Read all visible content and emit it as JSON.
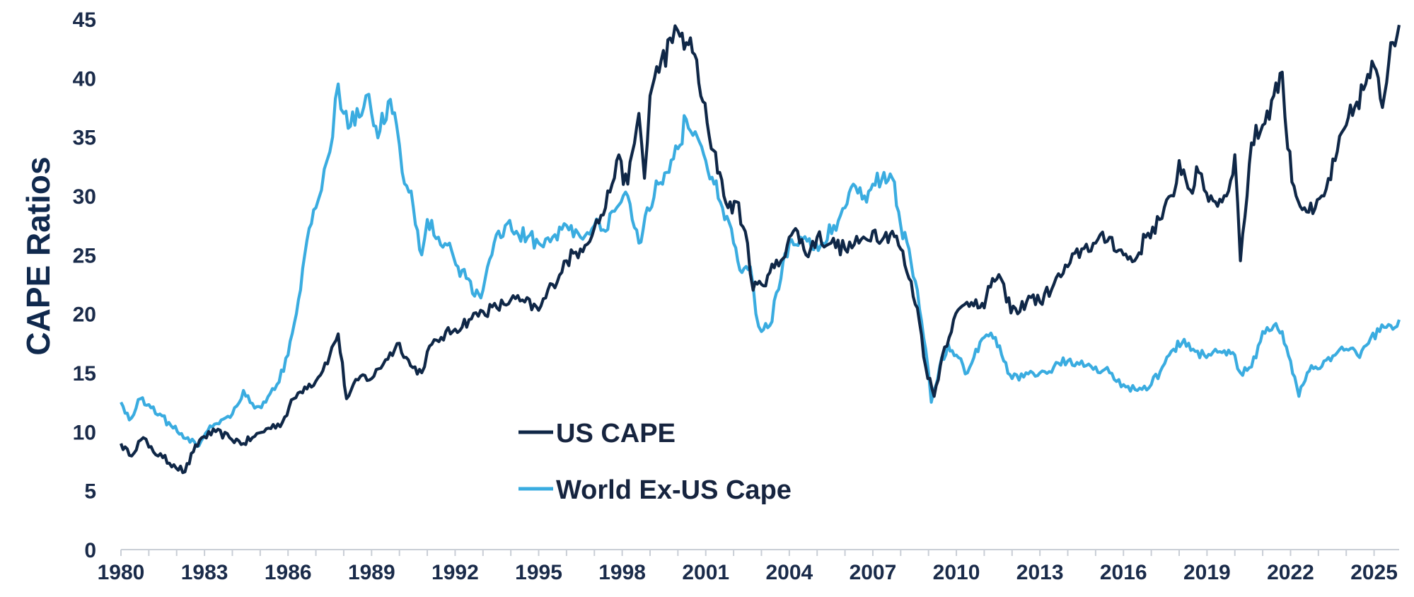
{
  "chart_data": {
    "type": "line",
    "title": "",
    "xlabel": "",
    "ylabel": "CAPE Ratios",
    "xlim": [
      1980,
      2025.9
    ],
    "ylim": [
      0,
      45
    ],
    "yticks": [
      0,
      5,
      10,
      15,
      20,
      25,
      30,
      35,
      40,
      45
    ],
    "xticks": [
      1980,
      1983,
      1986,
      1989,
      1992,
      1995,
      1998,
      2001,
      2004,
      2007,
      2010,
      2013,
      2016,
      2019,
      2022,
      2025
    ],
    "grid": false,
    "legend_position": "bottom-center",
    "series": [
      {
        "name": "US CAPE",
        "color": "#0f2747",
        "x": [
          1980.0,
          1980.3,
          1980.8,
          1981.0,
          1981.5,
          1981.9,
          1982.3,
          1982.6,
          1982.9,
          1983.4,
          1983.9,
          1984.4,
          1984.8,
          1985.3,
          1985.8,
          1986.2,
          1986.6,
          1987.0,
          1987.5,
          1987.8,
          1988.1,
          1988.6,
          1989.0,
          1989.5,
          1990.0,
          1990.4,
          1990.8,
          1991.0,
          1991.5,
          1992.0,
          1992.5,
          1993.0,
          1993.5,
          1994.0,
          1994.5,
          1995.0,
          1995.5,
          1996.0,
          1996.5,
          1997.0,
          1997.4,
          1997.8,
          1998.2,
          1998.6,
          1998.8,
          1999.0,
          1999.4,
          1999.8,
          2000.0,
          2000.3,
          2000.6,
          2000.9,
          2001.2,
          2001.5,
          2001.8,
          2002.1,
          2002.5,
          2002.7,
          2003.0,
          2003.3,
          2003.7,
          2004.0,
          2004.3,
          2004.6,
          2005.0,
          2005.5,
          2006.0,
          2006.5,
          2007.0,
          2007.4,
          2007.7,
          2008.0,
          2008.3,
          2008.6,
          2008.9,
          2009.2,
          2009.5,
          2009.9,
          2010.3,
          2010.7,
          2011.0,
          2011.3,
          2011.6,
          2011.8,
          2012.2,
          2012.6,
          2013.0,
          2013.5,
          2014.0,
          2014.5,
          2015.0,
          2015.5,
          2016.0,
          2016.4,
          2016.8,
          2017.3,
          2017.8,
          2018.0,
          2018.4,
          2018.7,
          2018.9,
          2019.3,
          2019.7,
          2020.0,
          2020.2,
          2020.6,
          2021.0,
          2021.4,
          2021.7,
          2021.9,
          2022.2,
          2022.5,
          2022.8,
          2023.2,
          2023.6,
          2024.0,
          2024.3,
          2024.7,
          2025.0,
          2025.3,
          2025.6,
          2025.9
        ],
        "values": [
          9.0,
          8.0,
          9.5,
          8.7,
          7.8,
          7.2,
          6.6,
          8.3,
          9.5,
          10.0,
          9.5,
          9.0,
          9.6,
          10.3,
          10.8,
          12.8,
          13.8,
          14.3,
          16.5,
          18.3,
          12.8,
          14.7,
          14.5,
          16.1,
          17.5,
          15.6,
          15.0,
          16.8,
          18.0,
          18.7,
          19.5,
          20.2,
          20.5,
          21.2,
          21.0,
          20.3,
          22.5,
          24.5,
          25.5,
          27.3,
          29.0,
          33.0,
          31.0,
          37.0,
          31.5,
          38.5,
          41.5,
          43.0,
          44.0,
          43.0,
          42.0,
          38.0,
          34.0,
          32.0,
          29.0,
          29.5,
          26.0,
          22.0,
          22.5,
          23.5,
          24.5,
          26.5,
          27.0,
          25.0,
          26.5,
          26.0,
          25.5,
          26.0,
          27.0,
          26.5,
          27.0,
          25.5,
          23.0,
          20.5,
          15.5,
          13.0,
          16.5,
          19.5,
          20.8,
          21.2,
          20.5,
          23.0,
          23.0,
          21.0,
          20.0,
          21.5,
          21.0,
          22.5,
          24.0,
          25.5,
          26.0,
          26.5,
          25.0,
          24.5,
          26.5,
          28.0,
          30.0,
          33.0,
          30.5,
          32.0,
          30.5,
          29.5,
          30.0,
          33.5,
          24.5,
          34.5,
          36.0,
          38.5,
          40.5,
          34.0,
          30.0,
          29.0,
          28.5,
          30.0,
          33.0,
          36.0,
          37.5,
          39.5,
          41.0,
          37.5,
          43.0,
          44.5
        ]
      },
      {
        "name": "World Ex-US Cape",
        "color": "#3aace0",
        "x": [
          1980.0,
          1980.3,
          1980.7,
          1981.0,
          1981.4,
          1981.8,
          1982.1,
          1982.4,
          1982.8,
          1983.2,
          1983.6,
          1984.0,
          1984.4,
          1984.8,
          1985.2,
          1985.6,
          1986.0,
          1986.3,
          1986.6,
          1987.0,
          1987.2,
          1987.4,
          1987.6,
          1987.8,
          1988.0,
          1988.4,
          1988.8,
          1989.0,
          1989.3,
          1989.6,
          1989.9,
          1990.1,
          1990.5,
          1990.8,
          1991.0,
          1991.4,
          1991.8,
          1992.1,
          1992.4,
          1992.7,
          1993.0,
          1993.4,
          1993.8,
          1994.2,
          1994.6,
          1995.0,
          1995.5,
          1996.0,
          1996.5,
          1997.0,
          1997.4,
          1997.8,
          1998.2,
          1998.6,
          1998.9,
          1999.3,
          1999.6,
          2000.0,
          2000.3,
          2000.7,
          2001.0,
          2001.3,
          2001.6,
          2002.0,
          2002.3,
          2002.6,
          2002.8,
          2003.0,
          2003.3,
          2003.7,
          2004.0,
          2004.4,
          2004.8,
          2005.2,
          2005.6,
          2006.0,
          2006.3,
          2006.7,
          2007.0,
          2007.4,
          2007.7,
          2008.0,
          2008.3,
          2008.6,
          2008.9,
          2009.1,
          2009.4,
          2009.7,
          2010.0,
          2010.4,
          2010.7,
          2011.0,
          2011.4,
          2011.7,
          2012.0,
          2012.5,
          2013.0,
          2013.5,
          2014.0,
          2014.5,
          2015.0,
          2015.5,
          2016.0,
          2016.5,
          2017.0,
          2017.4,
          2017.8,
          2018.1,
          2018.5,
          2018.9,
          2019.3,
          2019.7,
          2020.0,
          2020.2,
          2020.6,
          2021.0,
          2021.4,
          2021.7,
          2022.0,
          2022.3,
          2022.6,
          2022.9,
          2023.2,
          2023.6,
          2024.0,
          2024.4,
          2024.8,
          2025.2,
          2025.6,
          2025.9
        ],
        "values": [
          12.5,
          11.0,
          12.8,
          12.3,
          11.5,
          10.5,
          9.8,
          9.5,
          8.8,
          10.5,
          11.0,
          11.5,
          13.5,
          12.0,
          12.5,
          14.0,
          16.5,
          20.0,
          25.0,
          29.0,
          30.5,
          33.0,
          35.0,
          39.5,
          37.0,
          36.0,
          38.5,
          37.0,
          35.5,
          38.0,
          36.0,
          32.0,
          29.0,
          25.0,
          28.0,
          26.5,
          26.0,
          24.0,
          23.0,
          21.5,
          22.0,
          26.0,
          27.5,
          27.0,
          26.5,
          26.0,
          26.5,
          27.5,
          26.5,
          27.5,
          27.0,
          29.0,
          30.0,
          26.0,
          29.0,
          31.0,
          32.0,
          34.0,
          36.5,
          35.0,
          33.0,
          31.0,
          29.0,
          26.0,
          23.5,
          24.0,
          20.0,
          18.5,
          19.0,
          23.0,
          26.0,
          26.5,
          25.5,
          26.0,
          27.5,
          29.0,
          31.0,
          30.0,
          31.0,
          32.0,
          31.5,
          27.5,
          25.5,
          22.0,
          17.0,
          12.5,
          15.5,
          17.5,
          16.5,
          15.0,
          17.0,
          18.0,
          18.0,
          16.0,
          14.5,
          15.0,
          15.0,
          15.5,
          16.0,
          16.0,
          15.5,
          15.0,
          14.0,
          13.5,
          14.0,
          15.5,
          17.0,
          17.5,
          17.0,
          16.5,
          17.0,
          16.5,
          16.5,
          15.0,
          15.5,
          18.5,
          19.0,
          18.5,
          16.0,
          13.0,
          15.0,
          15.5,
          16.0,
          16.5,
          17.0,
          16.5,
          17.5,
          18.5,
          19.0,
          19.5
        ]
      }
    ],
    "legend": [
      {
        "label": "US CAPE",
        "series": 0
      },
      {
        "label": "World Ex-US Cape",
        "series": 1
      }
    ]
  }
}
